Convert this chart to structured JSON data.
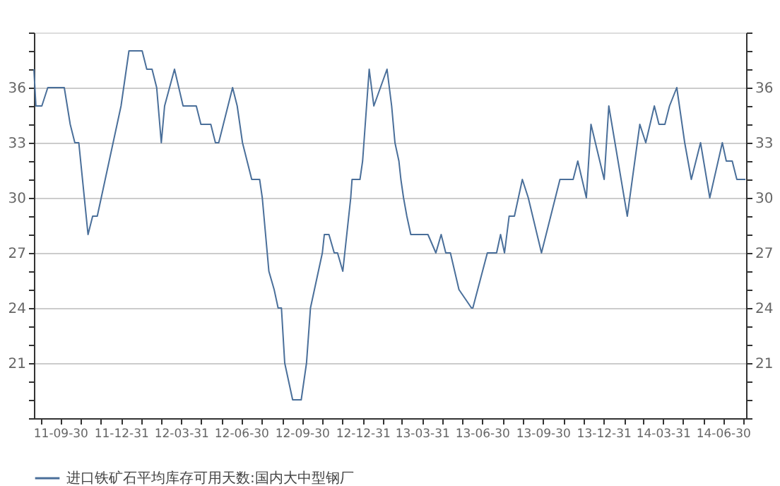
{
  "chart_data": {
    "type": "line",
    "legend": "bottom",
    "grid": "y",
    "marker": "none",
    "line_style": "solid",
    "x": [
      "2011-08-21",
      "2011-08-24",
      "2011-09-02",
      "2011-09-11",
      "2011-10-06",
      "2011-10-15",
      "2011-10-22",
      "2011-10-28",
      "2011-11-11",
      "2011-11-18",
      "2011-11-25",
      "2011-12-31",
      "2012-01-12",
      "2012-02-01",
      "2012-02-08",
      "2012-02-16",
      "2012-02-23",
      "2012-03-01",
      "2012-03-06",
      "2012-03-21",
      "2012-04-03",
      "2012-04-23",
      "2012-04-30",
      "2012-05-15",
      "2012-05-22",
      "2012-05-27",
      "2012-06-17",
      "2012-06-24",
      "2012-07-02",
      "2012-07-16",
      "2012-07-28",
      "2012-08-01",
      "2012-08-11",
      "2012-08-19",
      "2012-08-25",
      "2012-08-30",
      "2012-09-04",
      "2012-09-16",
      "2012-09-29",
      "2012-10-07",
      "2012-10-13",
      "2012-10-31",
      "2012-11-03",
      "2012-11-10",
      "2012-11-18",
      "2012-11-23",
      "2012-12-01",
      "2012-12-13",
      "2012-12-15",
      "2012-12-27",
      "2012-12-31",
      "2013-01-10",
      "2013-01-17",
      "2013-02-06",
      "2013-02-13",
      "2013-02-18",
      "2013-02-24",
      "2013-02-27",
      "2013-03-03",
      "2013-03-08",
      "2013-03-14",
      "2013-04-09",
      "2013-04-21",
      "2013-04-29",
      "2013-05-06",
      "2013-05-13",
      "2013-05-26",
      "2013-06-14",
      "2013-06-16",
      "2013-07-08",
      "2013-07-22",
      "2013-07-28",
      "2013-08-03",
      "2013-08-10",
      "2013-08-18",
      "2013-08-30",
      "2013-09-08",
      "2013-09-28",
      "2013-10-19",
      "2013-10-26",
      "2013-11-15",
      "2013-11-22",
      "2013-12-05",
      "2013-12-12",
      "2014-01-01",
      "2014-01-08",
      "2014-02-05",
      "2014-02-24",
      "2014-03-05",
      "2014-03-18",
      "2014-03-25",
      "2014-04-03",
      "2014-04-10",
      "2014-04-21",
      "2014-05-03",
      "2014-05-13",
      "2014-05-27",
      "2014-06-10",
      "2014-06-29",
      "2014-07-05",
      "2014-07-14",
      "2014-07-21",
      "2014-08-03"
    ],
    "series": [
      {
        "name": "进口铁矿石平均库存可用天数:国内大中型钢厂",
        "color": "#4a6f9a",
        "values": [
          37,
          35,
          35,
          36,
          36,
          34,
          33,
          33,
          28,
          29,
          29,
          35,
          38,
          38,
          37,
          37,
          36,
          33,
          35,
          37,
          35,
          35,
          34,
          34,
          33,
          33,
          36,
          35,
          33,
          31,
          31,
          30,
          26,
          25,
          24,
          24,
          21,
          19,
          19,
          21,
          24,
          27,
          28,
          28,
          27,
          27,
          26,
          30,
          31,
          31,
          32,
          37,
          35,
          37,
          35,
          33,
          32,
          31,
          30,
          29,
          28,
          28,
          27,
          28,
          27,
          27,
          25,
          24,
          24,
          27,
          27,
          28,
          27,
          29,
          29,
          31,
          30,
          27,
          30,
          31,
          31,
          32,
          30,
          34,
          31,
          35,
          29,
          34,
          33,
          35,
          34,
          34,
          35,
          36,
          33,
          31,
          33,
          30,
          33,
          32,
          32,
          31,
          31
        ]
      }
    ],
    "xlim": [
      "2011-08-21",
      "2014-08-04"
    ],
    "xticks": [
      {
        "value": "2011-08-31",
        "label": null
      },
      {
        "value": "2011-09-30",
        "label": "11-09-30"
      },
      {
        "value": "2011-10-31",
        "label": null
      },
      {
        "value": "2011-11-30",
        "label": null
      },
      {
        "value": "2011-12-31",
        "label": "11-12-31"
      },
      {
        "value": "2012-01-31",
        "label": null
      },
      {
        "value": "2012-02-29",
        "label": null
      },
      {
        "value": "2012-03-31",
        "label": "12-03-31"
      },
      {
        "value": "2012-04-30",
        "label": null
      },
      {
        "value": "2012-05-31",
        "label": null
      },
      {
        "value": "2012-06-30",
        "label": "12-06-30"
      },
      {
        "value": "2012-07-31",
        "label": null
      },
      {
        "value": "2012-08-31",
        "label": null
      },
      {
        "value": "2012-09-30",
        "label": "12-09-30"
      },
      {
        "value": "2012-10-31",
        "label": null
      },
      {
        "value": "2012-11-30",
        "label": null
      },
      {
        "value": "2012-12-31",
        "label": "12-12-31"
      },
      {
        "value": "2013-01-31",
        "label": null
      },
      {
        "value": "2013-02-28",
        "label": null
      },
      {
        "value": "2013-03-31",
        "label": "13-03-31"
      },
      {
        "value": "2013-04-30",
        "label": null
      },
      {
        "value": "2013-05-31",
        "label": null
      },
      {
        "value": "2013-06-30",
        "label": "13-06-30"
      },
      {
        "value": "2013-07-31",
        "label": null
      },
      {
        "value": "2013-08-31",
        "label": null
      },
      {
        "value": "2013-09-30",
        "label": "13-09-30"
      },
      {
        "value": "2013-10-31",
        "label": null
      },
      {
        "value": "2013-11-30",
        "label": null
      },
      {
        "value": "2013-12-31",
        "label": "13-12-31"
      },
      {
        "value": "2014-01-31",
        "label": null
      },
      {
        "value": "2014-02-28",
        "label": null
      },
      {
        "value": "2014-03-31",
        "label": "14-03-31"
      },
      {
        "value": "2014-04-30",
        "label": null
      },
      {
        "value": "2014-05-31",
        "label": null
      },
      {
        "value": "2014-06-30",
        "label": "14-06-30"
      },
      {
        "value": "2014-07-31",
        "label": null
      }
    ],
    "ylim": [
      18,
      39
    ],
    "yticks": [
      {
        "value": 18,
        "label": null
      },
      {
        "value": 19,
        "label": null
      },
      {
        "value": 20,
        "label": null
      },
      21,
      {
        "value": 22,
        "label": null
      },
      {
        "value": 23,
        "label": null
      },
      24,
      {
        "value": 25,
        "label": null
      },
      {
        "value": 26,
        "label": null
      },
      27,
      {
        "value": 28,
        "label": null
      },
      {
        "value": 29,
        "label": null
      },
      30,
      {
        "value": 31,
        "label": null
      },
      {
        "value": 32,
        "label": null
      },
      33,
      {
        "value": 34,
        "label": null
      },
      {
        "value": 35,
        "label": null
      },
      36,
      {
        "value": 37,
        "label": null
      },
      {
        "value": 38,
        "label": null
      },
      {
        "value": 39,
        "label": null
      }
    ],
    "y2lim": [
      18,
      39
    ],
    "y2ticks": [
      {
        "value": 18,
        "label": null
      },
      {
        "value": 19,
        "label": null
      },
      {
        "value": 20,
        "label": null
      },
      21,
      {
        "value": 22,
        "label": null
      },
      {
        "value": 23,
        "label": null
      },
      24,
      {
        "value": 25,
        "label": null
      },
      {
        "value": 26,
        "label": null
      },
      27,
      {
        "value": 28,
        "label": null
      },
      {
        "value": 29,
        "label": null
      },
      30,
      {
        "value": 31,
        "label": null
      },
      {
        "value": 32,
        "label": null
      },
      33,
      {
        "value": 34,
        "label": null
      },
      {
        "value": 35,
        "label": null
      },
      36,
      {
        "value": 37,
        "label": null
      },
      {
        "value": 38,
        "label": null
      },
      {
        "value": 39,
        "label": null
      }
    ]
  }
}
